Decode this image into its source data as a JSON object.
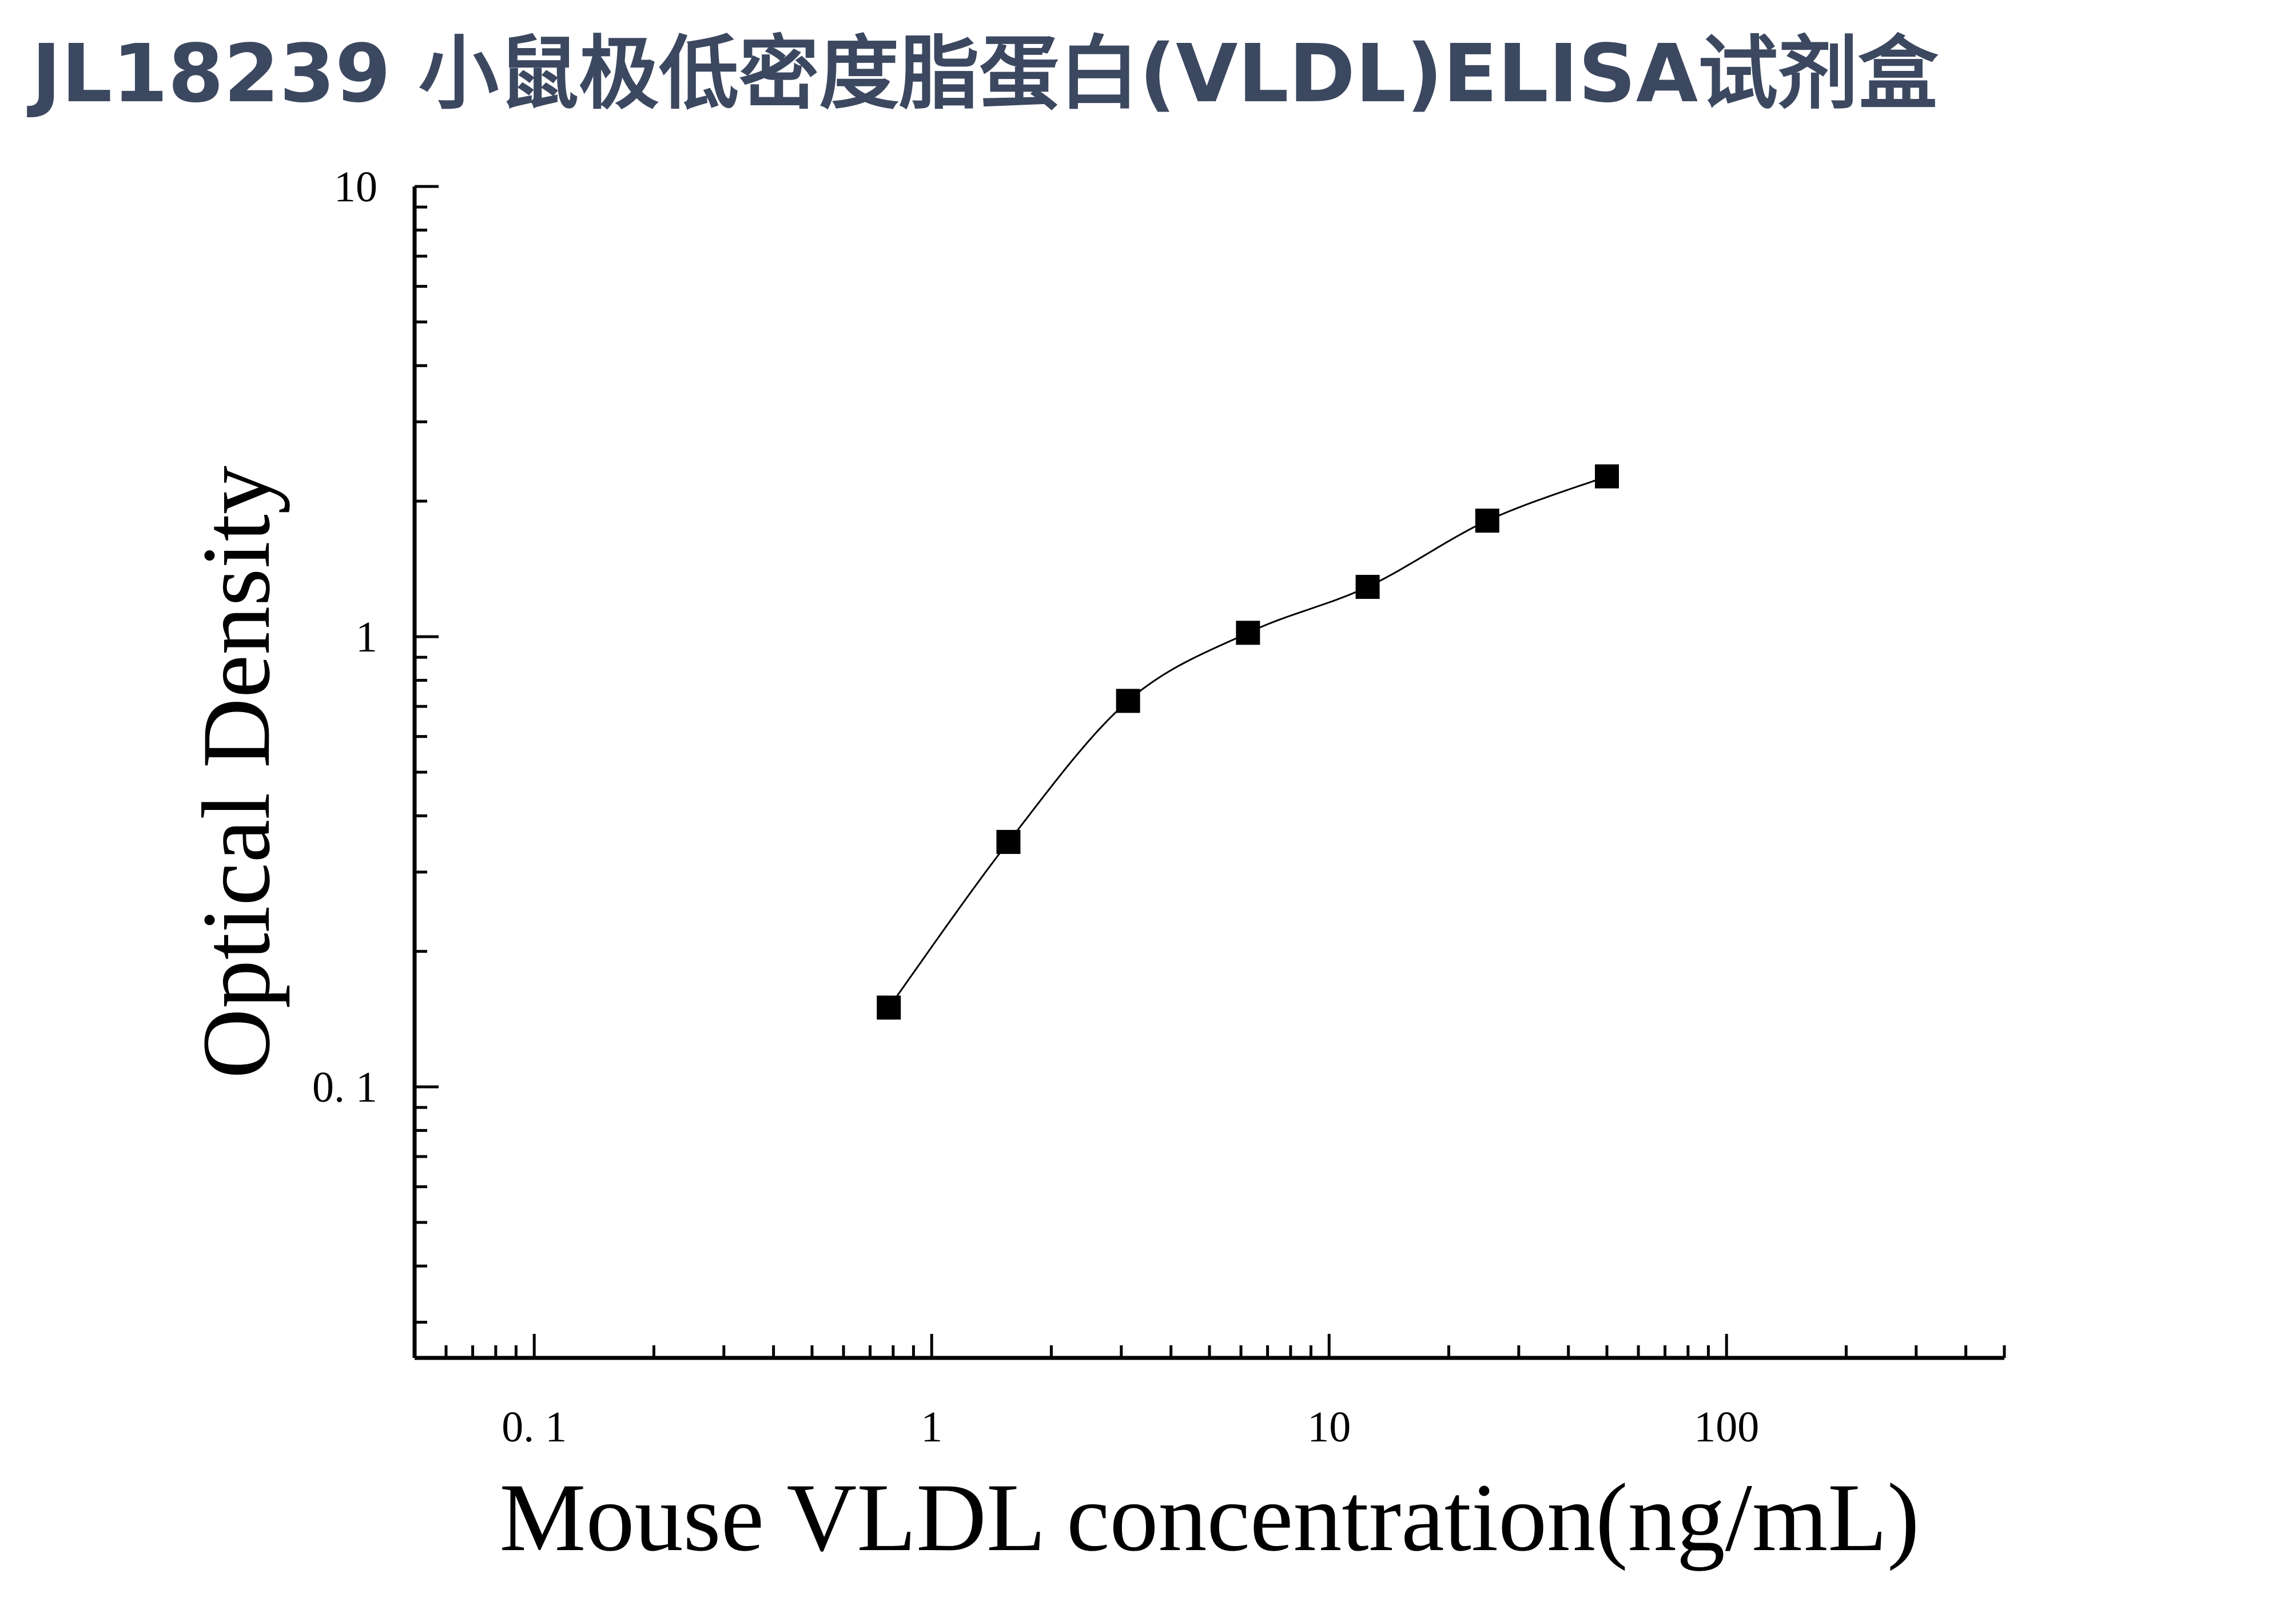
{
  "chart_data": {
    "type": "scatter",
    "title": "JL18239 小鼠极低密度脂蛋白(VLDL)ELISA试剂盒",
    "xlabel": "Mouse VLDL concentration(ng/mL)",
    "ylabel": "Optical Density",
    "x_scale": "log",
    "y_scale": "log",
    "xlim": [
      0.05,
      500
    ],
    "ylim": [
      0.025,
      10
    ],
    "x_tick_labels": [
      "0. 1",
      "1",
      "10",
      "100"
    ],
    "y_tick_labels": [
      "0. 1",
      "1",
      "10"
    ],
    "grid": false,
    "legend": "none",
    "marker": "square",
    "fit_curve": true,
    "series": [
      {
        "x": [
          0.78,
          1.56,
          3.12,
          6.25,
          12.5,
          25,
          50
        ],
        "y": [
          0.15,
          0.35,
          0.72,
          1.02,
          1.29,
          1.81,
          2.27
        ]
      }
    ]
  }
}
